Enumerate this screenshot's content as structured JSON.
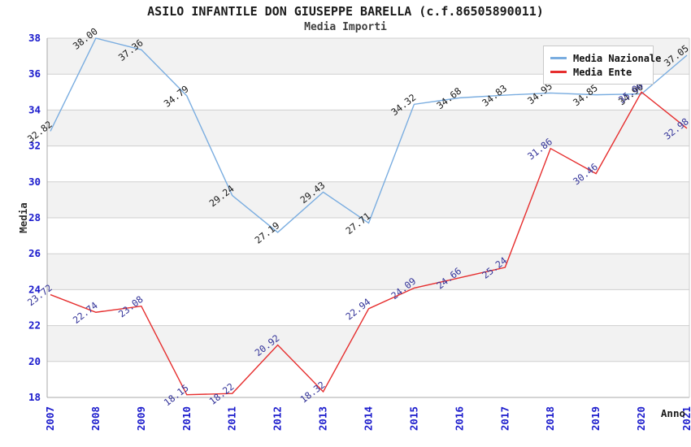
{
  "page": {
    "title": "ASILO INFANTILE DON GIUSEPPE BARELLA (c.f.86505890011)",
    "subtitle": "Media Importi"
  },
  "chart_data": {
    "type": "line",
    "x": [
      2007,
      2008,
      2009,
      2010,
      2011,
      2012,
      2013,
      2014,
      2015,
      2016,
      2017,
      2018,
      2019,
      2020,
      2021
    ],
    "series": [
      {
        "name": "Media Nazionale",
        "color": "#7aade0",
        "label_color": "#1a1a1a",
        "values": [
          32.82,
          38.0,
          37.36,
          34.79,
          29.24,
          27.19,
          29.43,
          27.71,
          34.32,
          34.68,
          34.83,
          34.95,
          34.85,
          34.9,
          37.05
        ]
      },
      {
        "name": "Media Ente",
        "color": "#e62e2e",
        "label_color": "#333399",
        "values": [
          23.72,
          22.74,
          23.08,
          18.15,
          18.22,
          20.92,
          18.32,
          22.94,
          24.09,
          24.66,
          25.24,
          31.86,
          30.46,
          35.0,
          32.98
        ]
      }
    ],
    "xlabel": "Anno",
    "ylabel": "Media",
    "ylim": [
      18,
      38
    ],
    "ytick_step": 2,
    "grid": true,
    "band_colors": [
      "#f2f2f2",
      "#ffffff"
    ],
    "gridline_color": "#cfcfcf",
    "axis_line_color": "#a8a8a8",
    "tick_label_color": "#1a1acc",
    "axis_title_color": "#2b2b2b",
    "legend_position": "top-right"
  }
}
